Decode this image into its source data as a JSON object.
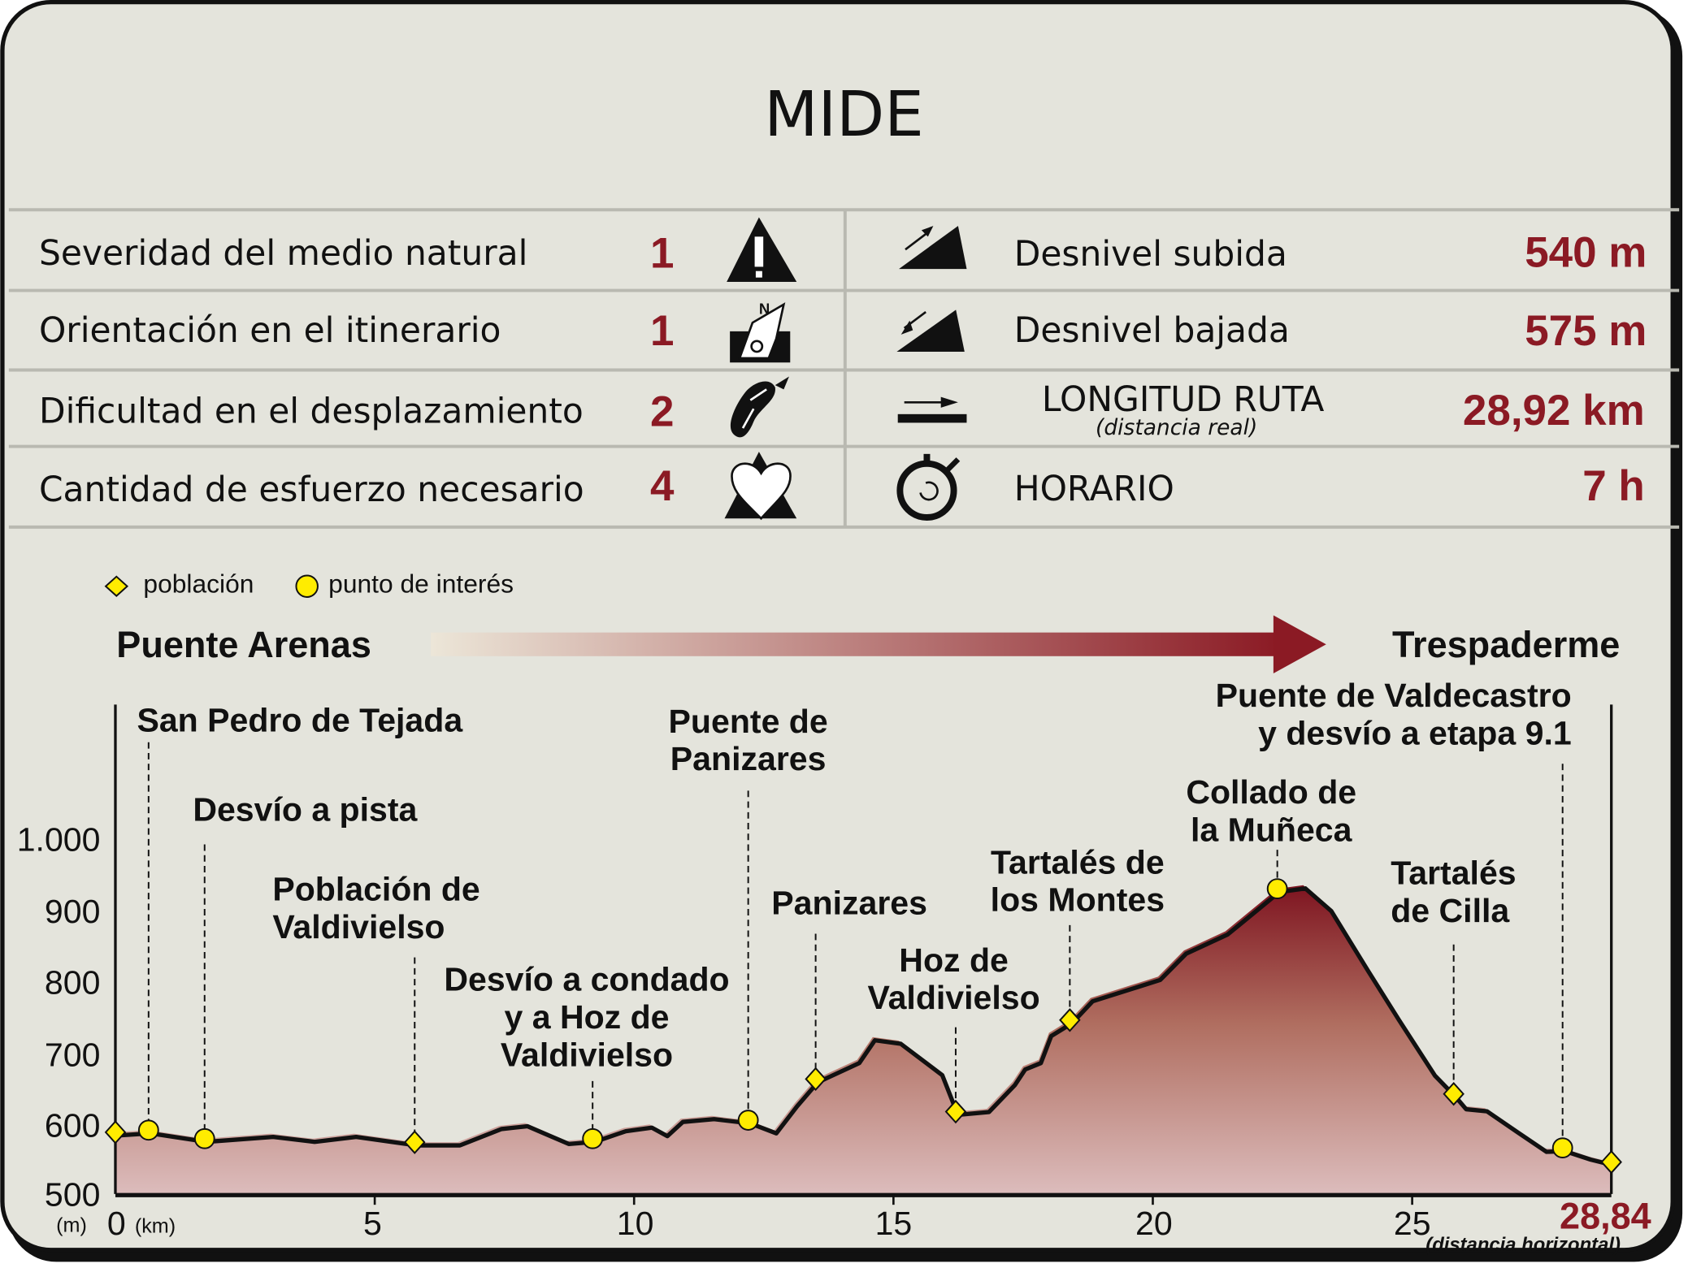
{
  "title": "MIDE",
  "colors": {
    "accent": "#8b1a24",
    "background": "#e4e4dc",
    "grid": "#b9b9b1",
    "marker": "#ffec00"
  },
  "mide": [
    {
      "label": "Severidad del medio natural",
      "value": "1",
      "icon": "warning-mountain-icon"
    },
    {
      "label": "Orientación en el itinerario",
      "value": "1",
      "icon": "compass-north-icon"
    },
    {
      "label": "Dificultad en el desplazamiento",
      "value": "2",
      "icon": "boot-sole-icon"
    },
    {
      "label": "Cantidad de esfuerzo necesario",
      "value": "4",
      "icon": "heart-mountain-icon"
    }
  ],
  "stats": [
    {
      "label": "Desnivel subida",
      "value": "540 m",
      "icon": "ascent-icon"
    },
    {
      "label": "Desnivel bajada",
      "value": "575 m",
      "icon": "descent-icon"
    },
    {
      "label": "LONGITUD RUTA",
      "sublabel": "(distancia real)",
      "value": "28,92 km",
      "icon": "distance-arrow-icon"
    },
    {
      "label": "HORARIO",
      "value": "7 h",
      "icon": "stopwatch-icon"
    }
  ],
  "legend": {
    "poblacion": "población",
    "interes": "punto de interés"
  },
  "route": {
    "start": "Puente Arenas",
    "end": "Trespaderme"
  },
  "chart_data": {
    "type": "area",
    "xlabel": "(km)",
    "ylabel": "(m)",
    "xlim": [
      0,
      28.84
    ],
    "ylim": [
      500,
      1000
    ],
    "x_ticks": [
      "0",
      "5",
      "10",
      "15",
      "20",
      "25"
    ],
    "y_ticks": [
      "500",
      "600",
      "700",
      "800",
      "900",
      "1.000"
    ],
    "x_end_label": "28,84",
    "x_end_note": "(distancia horizontal)",
    "grid": false,
    "legend_position": "top-left",
    "profile": [
      [
        0,
        587
      ],
      [
        0.64,
        590
      ],
      [
        1.72,
        578
      ],
      [
        3.0,
        585
      ],
      [
        3.8,
        578
      ],
      [
        4.6,
        585
      ],
      [
        5.77,
        573
      ],
      [
        6.6,
        573
      ],
      [
        7.4,
        596
      ],
      [
        7.9,
        600
      ],
      [
        8.7,
        575
      ],
      [
        9.2,
        578
      ],
      [
        9.8,
        593
      ],
      [
        10.3,
        598
      ],
      [
        10.6,
        586
      ],
      [
        10.9,
        606
      ],
      [
        11.5,
        610
      ],
      [
        12.2,
        604
      ],
      [
        12.7,
        590
      ],
      [
        13.1,
        628
      ],
      [
        13.5,
        662
      ],
      [
        14.3,
        689
      ],
      [
        14.6,
        721
      ],
      [
        15.1,
        716
      ],
      [
        15.9,
        672
      ],
      [
        16.2,
        616
      ],
      [
        16.8,
        620
      ],
      [
        17.3,
        658
      ],
      [
        17.5,
        680
      ],
      [
        17.8,
        689
      ],
      [
        18.0,
        727
      ],
      [
        18.4,
        745
      ],
      [
        18.8,
        776
      ],
      [
        20.1,
        806
      ],
      [
        20.6,
        843
      ],
      [
        21.4,
        870
      ],
      [
        22.4,
        930
      ],
      [
        22.9,
        935
      ],
      [
        23.4,
        903
      ],
      [
        24.1,
        820
      ],
      [
        24.7,
        750
      ],
      [
        25.4,
        671
      ],
      [
        25.8,
        641
      ],
      [
        26.0,
        624
      ],
      [
        26.4,
        621
      ],
      [
        27.0,
        591
      ],
      [
        27.55,
        564
      ],
      [
        27.9,
        565
      ],
      [
        28.4,
        553
      ],
      [
        28.84,
        545
      ]
    ],
    "points": [
      {
        "type": "poblacion",
        "km": 0,
        "alt": 587,
        "name": ""
      },
      {
        "type": "interes",
        "km": 0.64,
        "alt": 590,
        "name": [
          "San Pedro de Tejada"
        ]
      },
      {
        "type": "interes",
        "km": 1.72,
        "alt": 578,
        "name": [
          "Desvío a pista"
        ]
      },
      {
        "type": "poblacion",
        "km": 5.77,
        "alt": 573,
        "name": [
          "Población de",
          "Valdivielso"
        ]
      },
      {
        "type": "interes",
        "km": 9.2,
        "alt": 578,
        "name": [
          "Desvío a condado",
          "y a Hoz de",
          "Valdivielso"
        ]
      },
      {
        "type": "interes",
        "km": 12.2,
        "alt": 604,
        "name": [
          "Puente de",
          "Panizares"
        ]
      },
      {
        "type": "poblacion",
        "km": 13.5,
        "alt": 662,
        "name": [
          "Panizares"
        ]
      },
      {
        "type": "poblacion",
        "km": 16.2,
        "alt": 616,
        "name": [
          "Hoz de",
          "Valdivielso"
        ]
      },
      {
        "type": "poblacion",
        "km": 18.4,
        "alt": 745,
        "name": [
          "Tartalés de",
          "los Montes"
        ]
      },
      {
        "type": "interes",
        "km": 22.4,
        "alt": 930,
        "name": [
          "Collado de",
          "la Muñeca"
        ]
      },
      {
        "type": "poblacion",
        "km": 25.8,
        "alt": 641,
        "name": [
          "Tartalés",
          "de Cilla"
        ]
      },
      {
        "type": "interes",
        "km": 27.9,
        "alt": 565,
        "name": [
          "Puente de Valdecastro",
          "y desvío a etapa 9.1"
        ]
      },
      {
        "type": "poblacion",
        "km": 28.84,
        "alt": 545,
        "name": ""
      }
    ]
  }
}
